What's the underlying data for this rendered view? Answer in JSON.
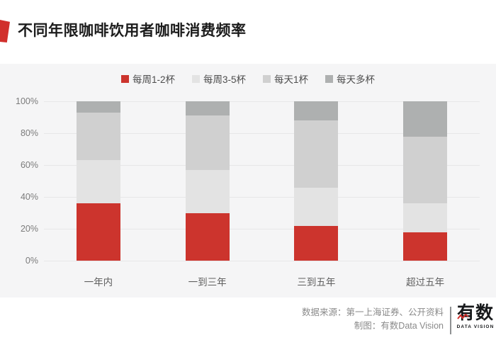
{
  "header": {
    "title": "不同年限咖啡饮用者咖啡消费频率"
  },
  "colors": {
    "accent_red": "#d1302c",
    "bar_red": "#cc342d",
    "panel_bg": "#f5f5f6",
    "gridline": "#e7e7e8",
    "title_text": "#1c1c1c",
    "axis_text": "#7b7b7b",
    "footer_text": "#8a8a8a"
  },
  "chart_data": {
    "type": "bar",
    "stacked": true,
    "title": "不同年限咖啡饮用者咖啡消费频率",
    "categories": [
      "一年内",
      "一到三年",
      "三到五年",
      "超过五年"
    ],
    "series": [
      {
        "name": "每周1-2杯",
        "color": "#cc342d",
        "values": [
          36,
          30,
          22,
          18
        ]
      },
      {
        "name": "每周3-5杯",
        "color": "#e3e3e3",
        "values": [
          27,
          27,
          24,
          18
        ]
      },
      {
        "name": "每天1杯",
        "color": "#d0d0d0",
        "values": [
          30,
          34,
          42,
          42
        ]
      },
      {
        "name": "每天多杯",
        "color": "#aeb0b0",
        "values": [
          7,
          9,
          12,
          22
        ]
      }
    ],
    "ylim": [
      0,
      100
    ],
    "yticks": [
      "0%",
      "20%",
      "40%",
      "60%",
      "80%",
      "100%"
    ],
    "ytick_values": [
      0,
      20,
      40,
      60,
      80,
      100
    ],
    "grid": true,
    "legend_position": "top"
  },
  "footer": {
    "source_line": "数据来源：第一上海证券、公开资料",
    "credit_line": "制图：有数Data Vision",
    "logo_text": "有数",
    "logo_subtext": "DATA VISION"
  }
}
